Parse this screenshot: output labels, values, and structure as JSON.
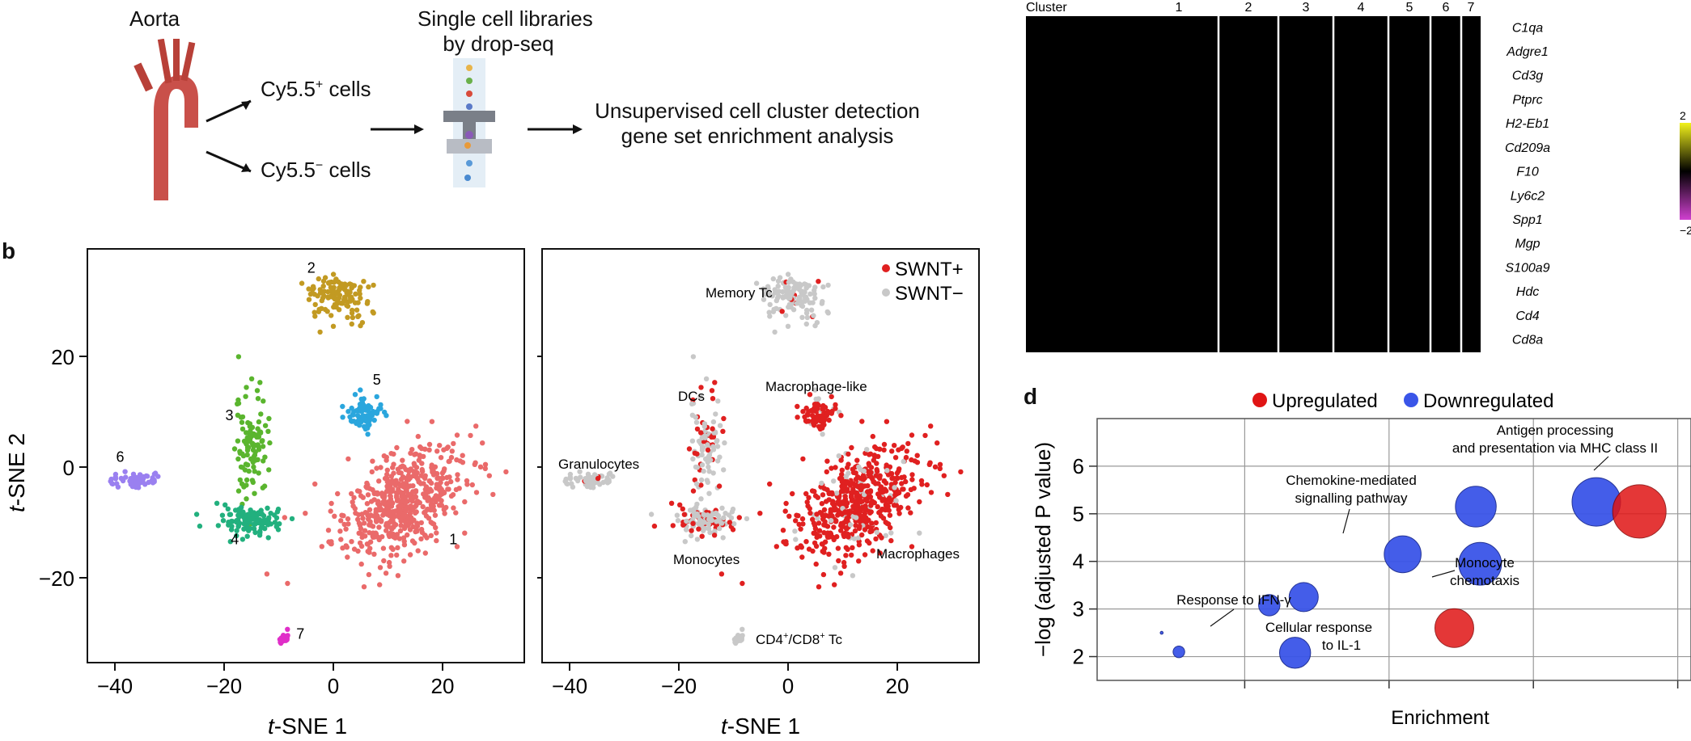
{
  "workflow": {
    "aorta_label": "Aorta",
    "libraries_line1": "Single cell libraries",
    "libraries_line2": "by drop-seq",
    "cy_pos_label": "Cy5.5",
    "cy_pos_sup": "+",
    "cy_pos_suffix": " cells",
    "cy_neg_label": "Cy5.5",
    "cy_neg_sup": "−",
    "cy_neg_suffix": " cells",
    "analysis_line1": "Unsupervised cell cluster detection",
    "analysis_line2": "gene set enrichment analysis"
  },
  "panel_letters": {
    "b": "b",
    "d": "d"
  },
  "tsne_axes": {
    "ylabel_italic": "t",
    "ylabel_rest": "-SNE 2",
    "xlabel_italic": "t",
    "xlabel_rest": "-SNE 1",
    "yticks": [
      "20",
      "0",
      "−20"
    ],
    "xticks": [
      "−40",
      "−20",
      "0",
      "20"
    ]
  },
  "legend_swnt": {
    "pos": "SWNT+",
    "neg": "SWNT−",
    "pos_color": "#e02020",
    "neg_color": "#c8c8c8"
  },
  "cell_type_labels": {
    "memory": "Memory Tc",
    "dcs": "DCs",
    "macro_like": "Macrophage-like",
    "granulocytes": "Granulocytes",
    "monocytes": "Monocytes",
    "macrophages": "Macrophages",
    "tc": "CD4",
    "tc_sup1": "+",
    "tc_mid": "/CD8",
    "tc_sup2": "+",
    "tc_end": " Tc"
  },
  "heatmap": {
    "cluster_header": "Cluster",
    "clusters": [
      "1",
      "2",
      "3",
      "4",
      "5",
      "6",
      "7"
    ],
    "genes": [
      "C1qa",
      "Adgre1",
      "Cd3g",
      "Ptprc",
      "H2-Eb1",
      "Cd209a",
      "F10",
      "Ly6c2",
      "Spp1",
      "Mgp",
      "S100a9",
      "Hdc",
      "Cd4",
      "Cd8a"
    ],
    "scale_top": "2",
    "scale_bottom": "−2",
    "colors": {
      "high": "#f2f21a",
      "mid": "#000000",
      "low": "#d040d0"
    }
  },
  "legend_enrich": {
    "up": "Upregulated",
    "down": "Downregulated",
    "up_color": "#e01515",
    "down_color": "#3a55e8"
  },
  "chart_data": [
    {
      "type": "scatter",
      "title": "",
      "xlabel": "t-SNE 1",
      "ylabel": "t-SNE 2",
      "xlim": [
        -45,
        35
      ],
      "ylim": [
        -35,
        35
      ],
      "grid": false,
      "series": [
        {
          "name": "1",
          "color": "#ea6a6a",
          "cx": 12,
          "cy": -8,
          "n": 560,
          "sx": 10,
          "sy": 7
        },
        {
          "name": "2",
          "color": "#c29a22",
          "cx": 1,
          "cy": 27,
          "n": 130,
          "sx": 5,
          "sy": 3
        },
        {
          "name": "3",
          "color": "#5ab52e",
          "cx": -15,
          "cy": 2,
          "n": 110,
          "sx": 2.5,
          "sy": 7
        },
        {
          "name": "4",
          "color": "#22b07e",
          "cx": -15,
          "cy": -11,
          "n": 120,
          "sx": 5,
          "sy": 2
        },
        {
          "name": "5",
          "color": "#2aa6dd",
          "cx": 6,
          "cy": 7,
          "n": 80,
          "sx": 3,
          "sy": 2.5
        },
        {
          "name": "6",
          "color": "#9a80f0",
          "cx": -36,
          "cy": -4,
          "n": 70,
          "sx": 3,
          "sy": 0.9
        },
        {
          "name": "7",
          "color": "#e02ec8",
          "cx": -9,
          "cy": -31,
          "n": 18,
          "sx": 0.8,
          "sy": 0.8
        }
      ]
    },
    {
      "type": "scatter",
      "title": "",
      "xlabel": "t-SNE 1",
      "ylabel": "",
      "xlim": [
        -45,
        35
      ],
      "ylim": [
        -35,
        35
      ],
      "legend": "top-right",
      "grid": false,
      "series": [
        {
          "name": "SWNT+",
          "color": "#e02020"
        },
        {
          "name": "SWNT−",
          "color": "#c8c8c8"
        }
      ]
    },
    {
      "type": "scatter",
      "title": "",
      "xlabel": "Enrichment",
      "ylabel": "−log (adjusted P value)",
      "ylim": [
        1.5,
        7
      ],
      "yticks": [
        "2",
        "3",
        "4",
        "5",
        "6"
      ],
      "grid": true,
      "series": [
        {
          "name": "Upregulated",
          "points": [
            {
              "x": 7.3,
              "y": 5.05,
              "size": 55,
              "label": "Antigen processing and presentation via MHC class II"
            },
            {
              "x": 5.15,
              "y": 2.6,
              "size": 40,
              "label": ""
            }
          ]
        },
        {
          "name": "Downregulated",
          "points": [
            {
              "x": 6.8,
              "y": 5.25,
              "size": 50,
              "label": ""
            },
            {
              "x": 5.4,
              "y": 5.15,
              "size": 42,
              "label": ""
            },
            {
              "x": 5.45,
              "y": 3.95,
              "size": 44,
              "label": "Monocyte chemotaxis"
            },
            {
              "x": 4.55,
              "y": 4.15,
              "size": 38,
              "label": "Chemokine-mediated signalling pathway"
            },
            {
              "x": 3.4,
              "y": 3.25,
              "size": 30,
              "label": ""
            },
            {
              "x": 3.0,
              "y": 3.08,
              "size": 22,
              "label": "Response to IFN-γ"
            },
            {
              "x": 3.3,
              "y": 2.08,
              "size": 32,
              "label": "Cellular response to IL-1"
            },
            {
              "x": 1.95,
              "y": 2.1,
              "size": 12,
              "label": ""
            },
            {
              "x": 1.75,
              "y": 2.5,
              "size": 3,
              "label": ""
            }
          ]
        }
      ]
    }
  ]
}
